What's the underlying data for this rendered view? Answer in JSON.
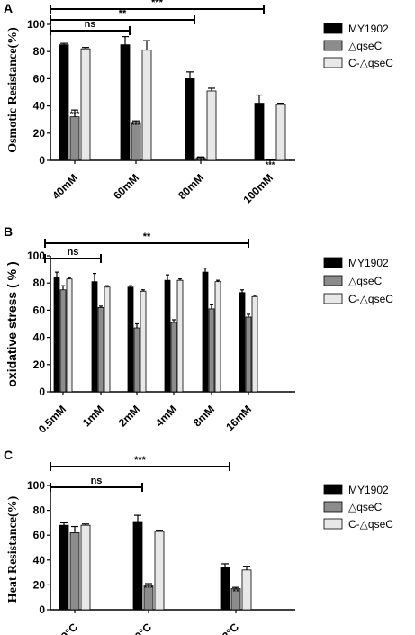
{
  "colors": {
    "wt": "#000000",
    "mutant": "#8c8c8c",
    "comp": "#e8e8e8",
    "edge": "#000000"
  },
  "series_names": [
    "MY1902",
    "△qseC",
    "C-△qseC"
  ],
  "chart_data": [
    {
      "panel": "A",
      "type": "bar",
      "ylabel": "Osmotic Resistance(%)",
      "ylim": [
        0,
        100
      ],
      "yticks": [
        0,
        20,
        40,
        60,
        80,
        100
      ],
      "categories": [
        "40mM",
        "60mM",
        "80mM",
        "100mM"
      ],
      "series": [
        {
          "name": "MY1902",
          "values": [
            85,
            85,
            60,
            42
          ],
          "errors": [
            1,
            6,
            5,
            6
          ]
        },
        {
          "name": "△qseC",
          "values": [
            32,
            27,
            2,
            0
          ],
          "errors": [
            5,
            2,
            0.5,
            0
          ]
        },
        {
          "name": "C-△qseC",
          "values": [
            82,
            81,
            51,
            41
          ],
          "errors": [
            1,
            7,
            2,
            1
          ]
        }
      ],
      "annotations": [
        {
          "text": "***",
          "category": 0,
          "series": 1
        },
        {
          "text": "***",
          "category": 1,
          "series": 1
        },
        {
          "text": "***",
          "category": 2,
          "series": 1
        },
        {
          "text": "***",
          "category": 3,
          "series": 1
        }
      ],
      "brackets": [
        {
          "from": 0,
          "to": 1,
          "text": "ns"
        },
        {
          "from": 0,
          "to": 2,
          "text": "**"
        },
        {
          "from": 0,
          "to": 3,
          "text": "***"
        }
      ]
    },
    {
      "panel": "B",
      "type": "bar",
      "ylabel": "oxidative stress ( % )",
      "ylim": [
        0,
        100
      ],
      "yticks": [
        0,
        20,
        40,
        60,
        80,
        100
      ],
      "categories": [
        "0.5mM",
        "1mM",
        "2mM",
        "4mM",
        "8mM",
        "16mM"
      ],
      "series": [
        {
          "name": "MY1902",
          "values": [
            84,
            81,
            77,
            82,
            88,
            73
          ],
          "errors": [
            4,
            6,
            1,
            4,
            3,
            2
          ]
        },
        {
          "name": "△qseC",
          "values": [
            75,
            62,
            47,
            51,
            61,
            55
          ],
          "errors": [
            3,
            1,
            3,
            2,
            3,
            2
          ]
        },
        {
          "name": "C-△qseC",
          "values": [
            83,
            77,
            74,
            82,
            81,
            70
          ],
          "errors": [
            1,
            1,
            1,
            1,
            1,
            1
          ]
        }
      ],
      "annotations": [],
      "brackets": [
        {
          "from": 0,
          "to": 1,
          "text": "ns"
        },
        {
          "from": 0,
          "to": 5,
          "text": "**"
        }
      ]
    },
    {
      "panel": "C",
      "type": "bar",
      "ylabel": "Heat Resistance(%)",
      "ylim": [
        0,
        100
      ],
      "yticks": [
        0,
        20,
        40,
        60,
        80,
        100
      ],
      "categories": [
        "39°C",
        "40°C",
        "42°C"
      ],
      "series": [
        {
          "name": "MY1902",
          "values": [
            68,
            71,
            34
          ],
          "errors": [
            2,
            5,
            3
          ]
        },
        {
          "name": "△qseC",
          "values": [
            62,
            20,
            17
          ],
          "errors": [
            5,
            1,
            1
          ]
        },
        {
          "name": "C-△qseC",
          "values": [
            68,
            63,
            32
          ],
          "errors": [
            1,
            1,
            3
          ]
        }
      ],
      "annotations": [
        {
          "text": "***",
          "category": 1,
          "series": 1
        },
        {
          "text": "**",
          "category": 2,
          "series": 1
        }
      ],
      "brackets": [
        {
          "from": 0,
          "to": 1,
          "text": "ns"
        },
        {
          "from": 0,
          "to": 2,
          "text": "***"
        }
      ]
    }
  ]
}
